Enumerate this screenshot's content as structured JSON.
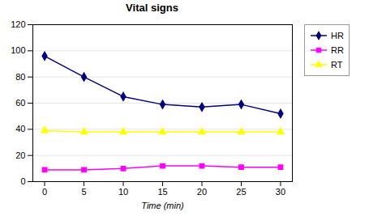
{
  "chart_data": {
    "type": "line",
    "title": "Vital signs",
    "xlabel": "Time (min)",
    "x": [
      0,
      5,
      10,
      15,
      20,
      25,
      30
    ],
    "series": [
      {
        "name": "HR",
        "color": "#000080",
        "marker": "diamond",
        "values": [
          96,
          80,
          65,
          59,
          57,
          59,
          52
        ]
      },
      {
        "name": "RR",
        "color": "#FF00FF",
        "marker": "square",
        "values": [
          9,
          9,
          10,
          12,
          12,
          11,
          11
        ]
      },
      {
        "name": "RT",
        "color": "#FFFF00",
        "marker": "triangle",
        "values": [
          39,
          38,
          38,
          38,
          38,
          38,
          38
        ]
      }
    ],
    "xlim": [
      -1.5,
      31.5
    ],
    "xticks": [
      0,
      5,
      10,
      15,
      20,
      25,
      30
    ],
    "ylim": [
      0,
      120
    ],
    "yticks": [
      0,
      20,
      40,
      60,
      80,
      100,
      120
    ],
    "grid": true,
    "legend": "right"
  }
}
